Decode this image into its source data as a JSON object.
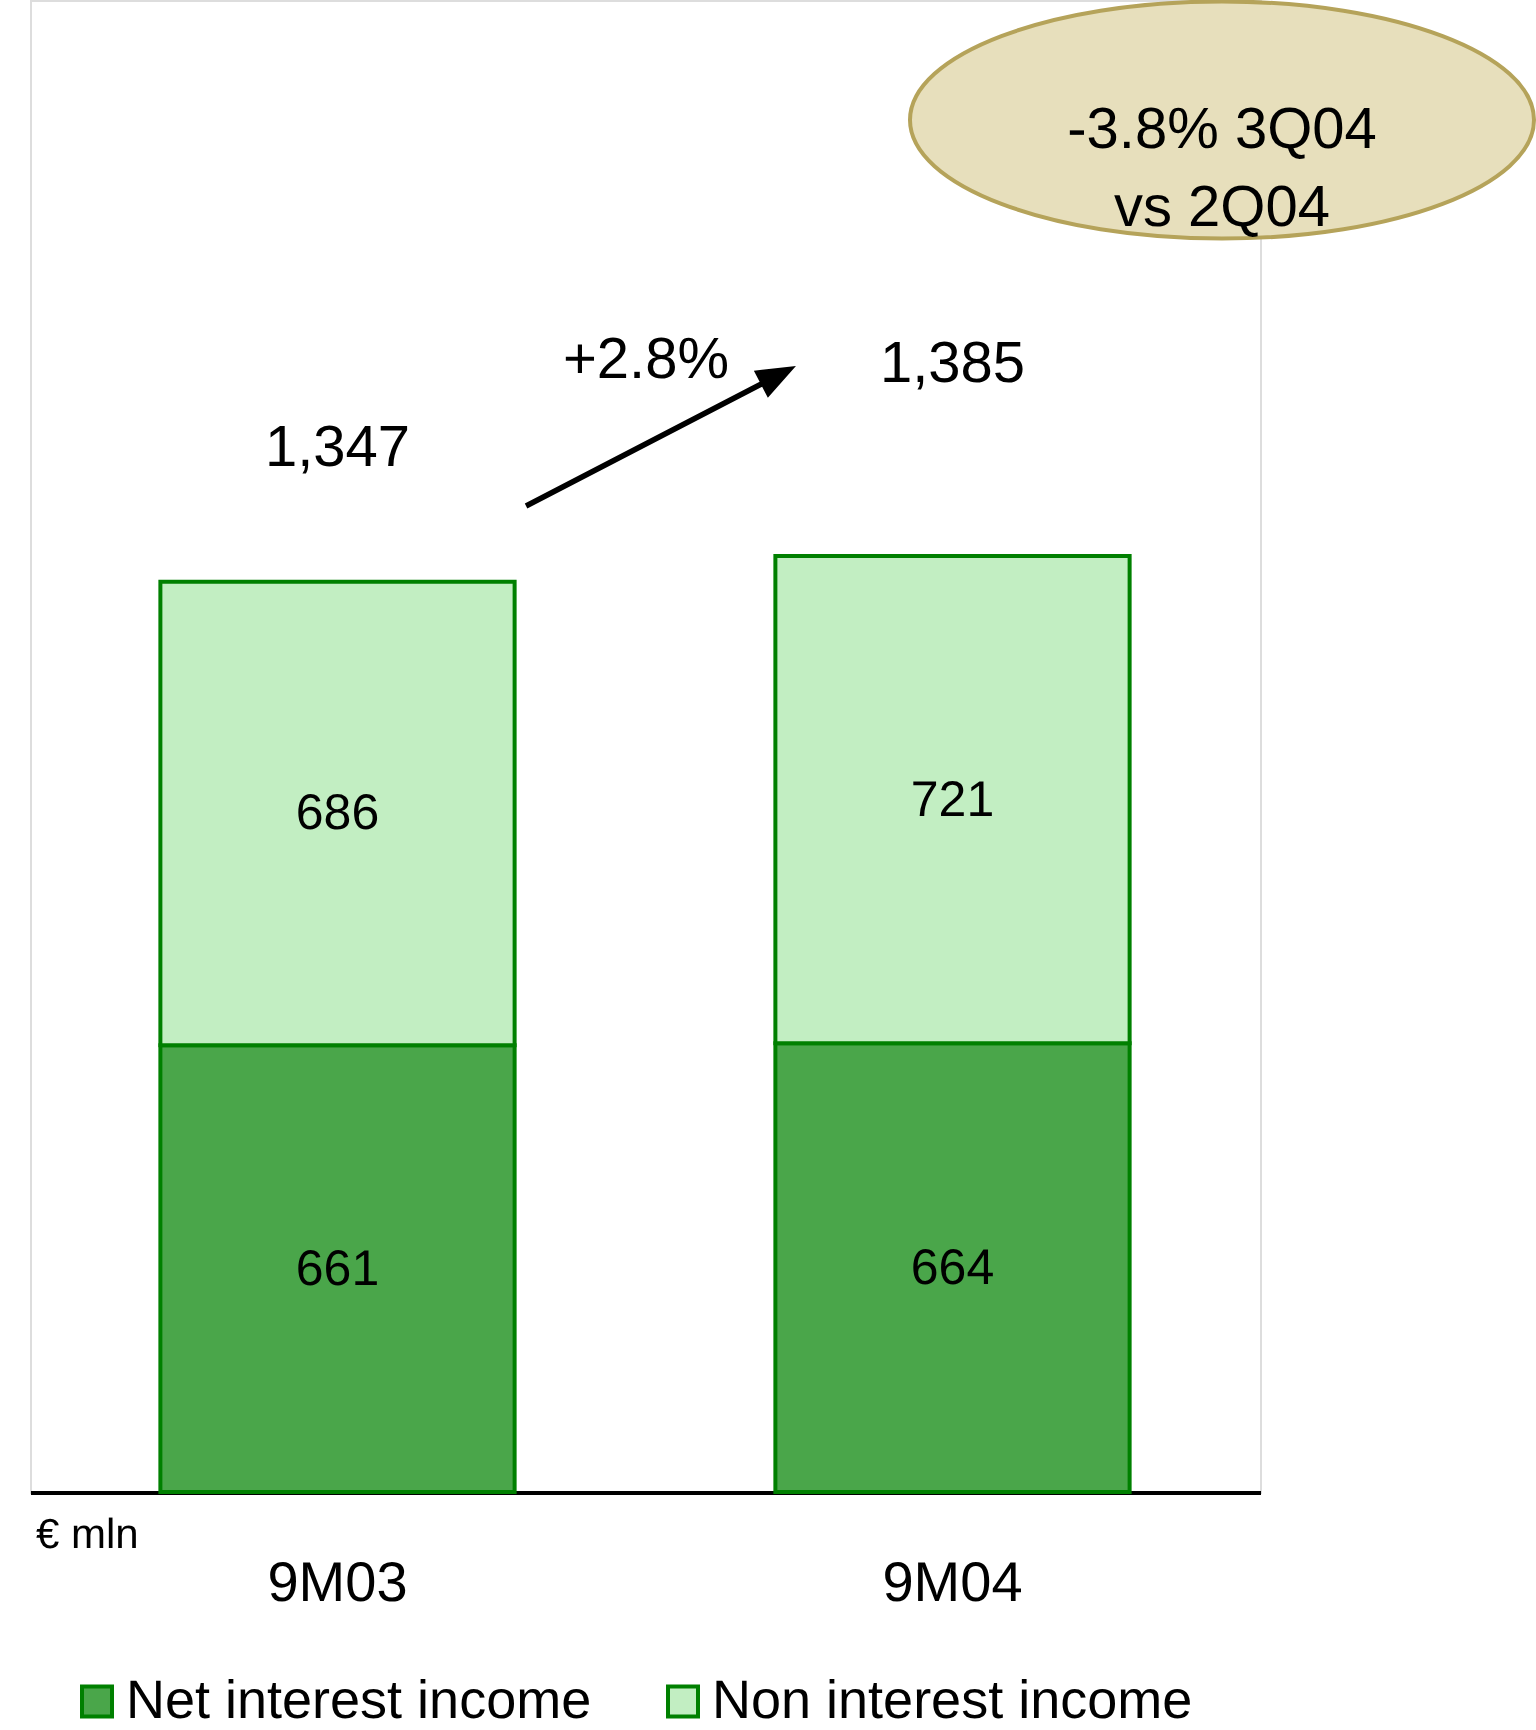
{
  "chart_data": {
    "type": "bar",
    "stacked": true,
    "categories": [
      "9M03",
      "9M04"
    ],
    "series": [
      {
        "name": "Net interest income",
        "color": "#4aa64a",
        "values": [
          661,
          664
        ]
      },
      {
        "name": "Non interest income",
        "color": "#c2eec2",
        "values": [
          686,
          721
        ]
      }
    ],
    "data_labels": true,
    "totals": [
      "1,347",
      "1,385"
    ],
    "annotations": [
      "+2.8%",
      "-3.8% 3Q04 vs 2Q04",
      "€ mln"
    ],
    "legend": "bottom",
    "tick_labels": "x"
  }
}
